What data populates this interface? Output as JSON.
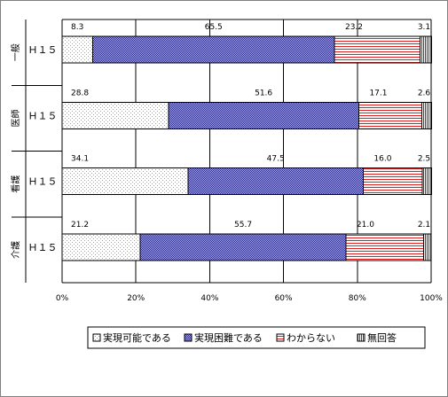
{
  "chart_data": {
    "type": "bar",
    "orientation": "horizontal",
    "stacked": "100%",
    "groups": [
      {
        "label": "一般",
        "row": "Ｈ１５"
      },
      {
        "label": "医師",
        "row": "Ｈ１５"
      },
      {
        "label": "看護",
        "row": "Ｈ１５"
      },
      {
        "label": "介護",
        "row": "Ｈ１５"
      }
    ],
    "series": [
      {
        "name": "実現可能である",
        "values": [
          8.3,
          28.8,
          34.1,
          21.2
        ],
        "pattern": "dots-light"
      },
      {
        "name": "実現困難である",
        "values": [
          65.5,
          51.6,
          47.5,
          55.7
        ],
        "pattern": "checker-blue"
      },
      {
        "name": "わからない",
        "values": [
          23.2,
          17.1,
          16.0,
          21.0
        ],
        "pattern": "hlines-red"
      },
      {
        "name": "無回答",
        "values": [
          3.1,
          2.6,
          2.5,
          2.1
        ],
        "pattern": "vlines-purple"
      }
    ],
    "value_labels": [
      [
        "8.3",
        "65.5",
        "23.2",
        "3.1"
      ],
      [
        "28.8",
        "51.6",
        "17.1",
        "2.6"
      ],
      [
        "34.1",
        "47.5",
        "16.0",
        "2.5"
      ],
      [
        "21.2",
        "55.7",
        "21.0",
        "2.1"
      ]
    ],
    "xlim": [
      0,
      100
    ],
    "xticks": [
      "0%",
      "20%",
      "40%",
      "60%",
      "80%",
      "100%"
    ],
    "grid": true,
    "legend_position": "bottom"
  }
}
